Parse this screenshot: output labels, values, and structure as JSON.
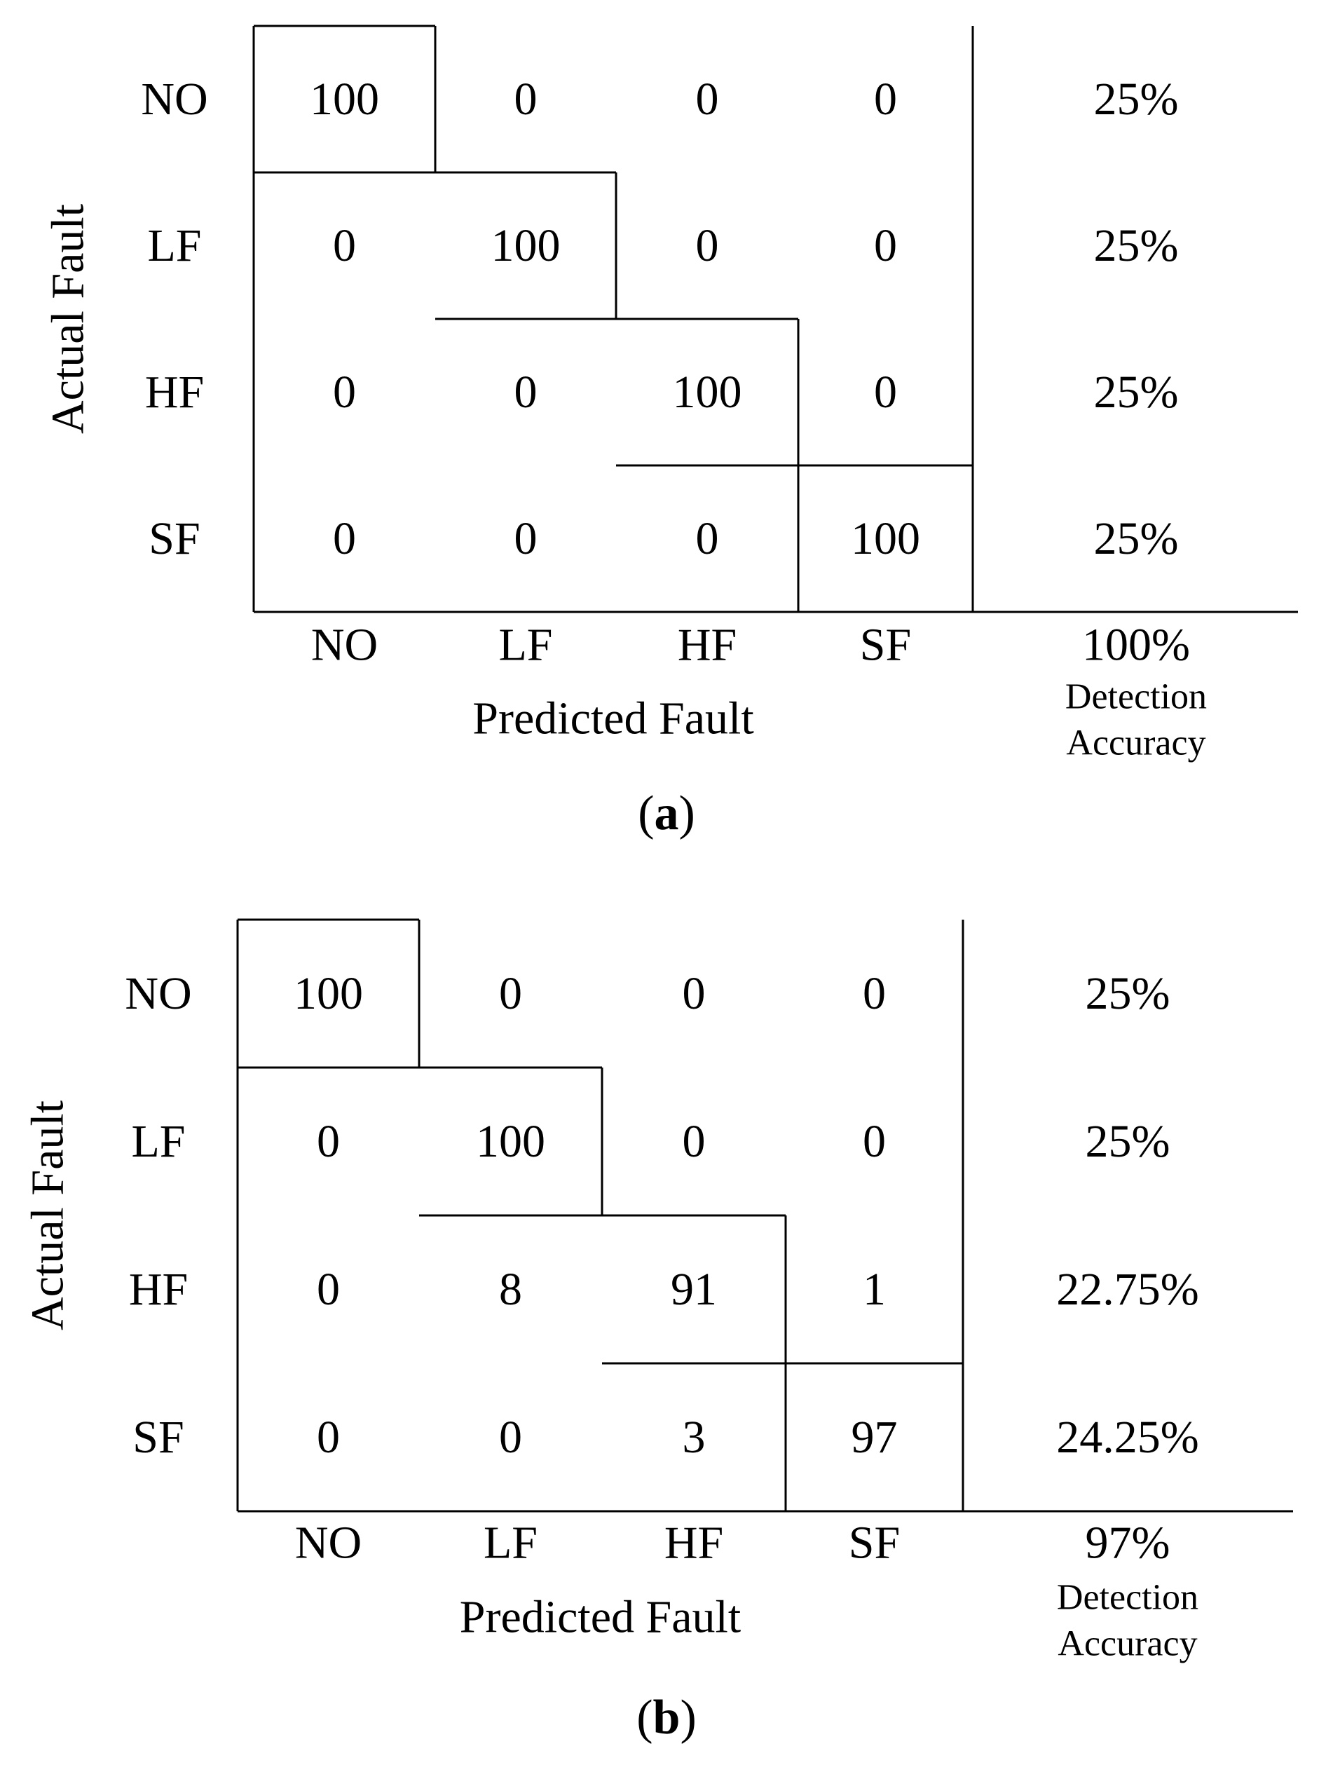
{
  "colors": {
    "ink": "#000000",
    "background": "#ffffff"
  },
  "chart_data": [
    {
      "type": "table",
      "panel_label": "a",
      "row_labels": [
        "NO",
        "LF",
        "HF",
        "SF"
      ],
      "column_labels": [
        "NO",
        "LF",
        "HF",
        "SF"
      ],
      "ylabel": "Actual Fault",
      "xlabel": "Predicted Fault",
      "matrix": [
        [
          100,
          0,
          0,
          0
        ],
        [
          0,
          100,
          0,
          0
        ],
        [
          0,
          0,
          100,
          0
        ],
        [
          0,
          0,
          0,
          100
        ]
      ],
      "row_accuracy": [
        "25%",
        "25%",
        "25%",
        "25%"
      ],
      "overall_accuracy": "100%",
      "accuracy_caption": [
        "Detection",
        "Accuracy"
      ]
    },
    {
      "type": "table",
      "panel_label": "b",
      "row_labels": [
        "NO",
        "LF",
        "HF",
        "SF"
      ],
      "column_labels": [
        "NO",
        "LF",
        "HF",
        "SF"
      ],
      "ylabel": "Actual Fault",
      "xlabel": "Predicted Fault",
      "matrix": [
        [
          100,
          0,
          0,
          0
        ],
        [
          0,
          100,
          0,
          0
        ],
        [
          0,
          8,
          91,
          1
        ],
        [
          0,
          0,
          3,
          97
        ]
      ],
      "row_accuracy": [
        "25%",
        "25%",
        "22.75%",
        "24.25%"
      ],
      "overall_accuracy": "97%",
      "accuracy_caption": [
        "Detection",
        "Accuracy"
      ]
    }
  ]
}
